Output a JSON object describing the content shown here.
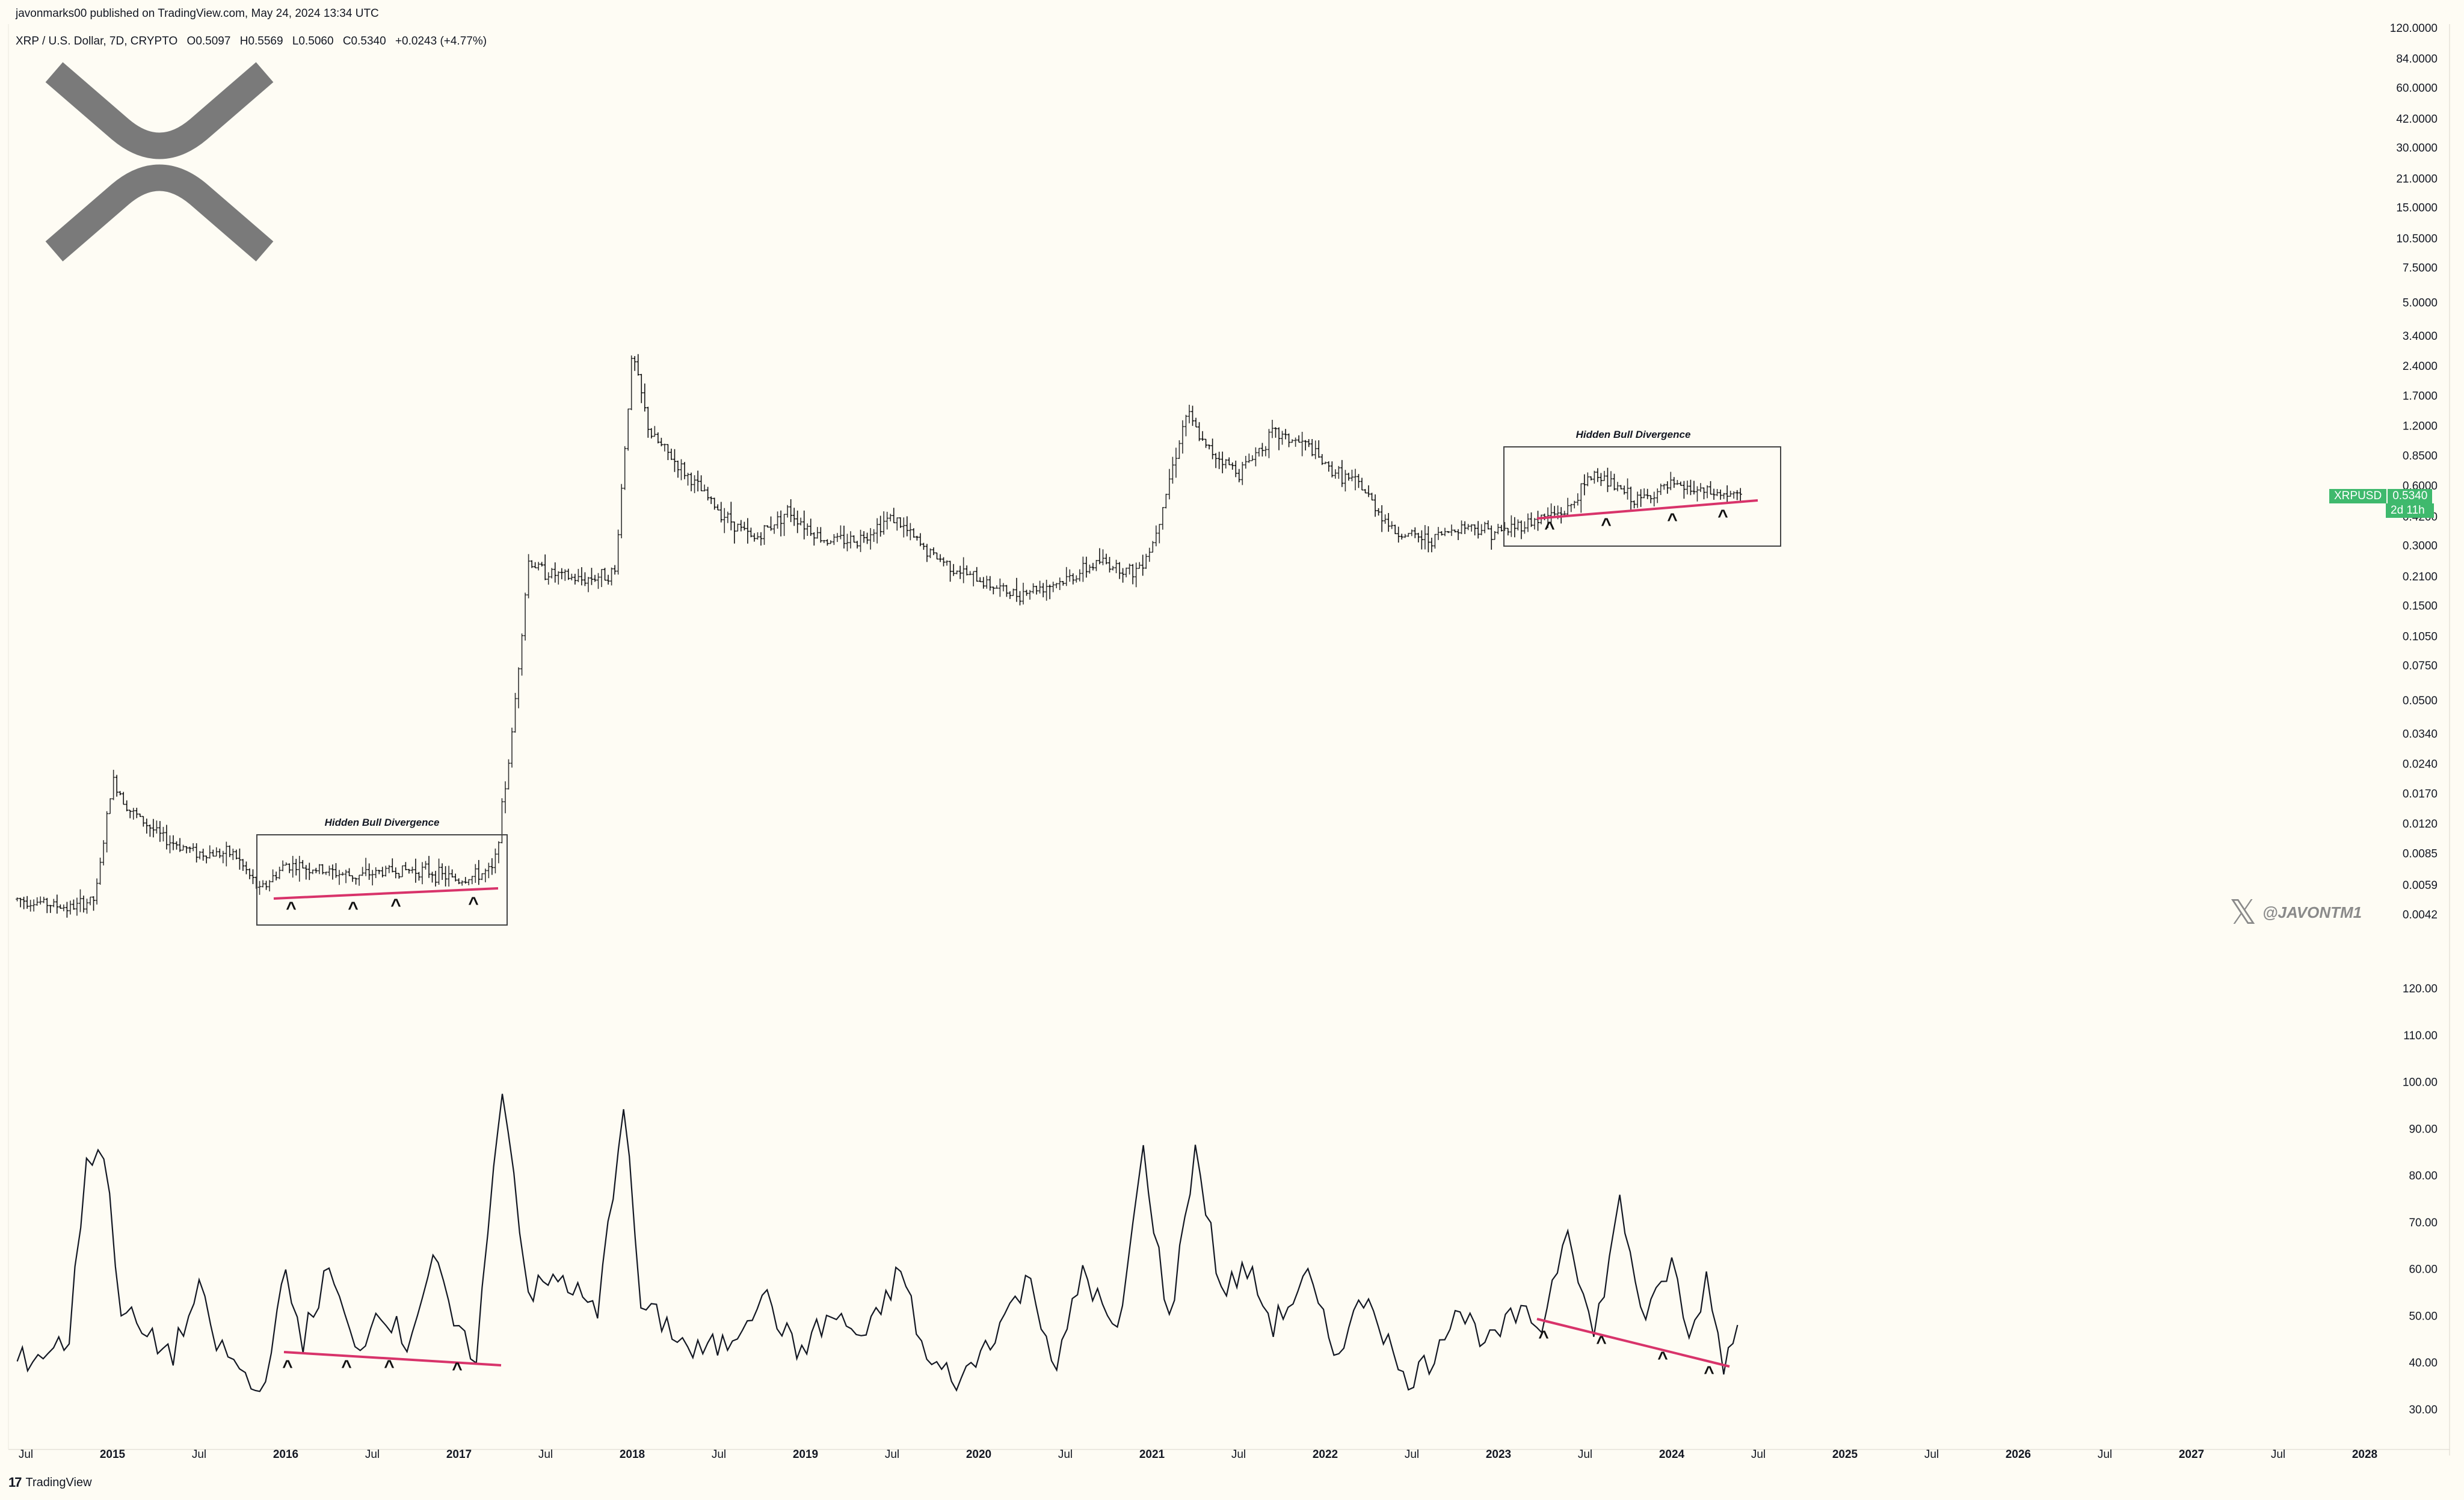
{
  "header": {
    "published": "javonmarks00 published on TradingView.com, May 24, 2024 13:34 UTC"
  },
  "symbol": {
    "name": "XRP / U.S. Dollar, 7D, CRYPTO",
    "open": "O0.5097",
    "high": "H0.5569",
    "low": "L0.5060",
    "close": "C0.5340",
    "change": "+0.0243 (+4.77%)"
  },
  "price_tag": {
    "symbol": "XRPUSD",
    "value": "0.5340",
    "countdown": "2d 11h",
    "color": "#3fb96d"
  },
  "watermark": {
    "handle": "@JAVONTM1",
    "icon": "x-logo-icon"
  },
  "brand": {
    "name": "TradingView",
    "icon": "tradingview-logo-icon"
  },
  "logo": {
    "icon": "xrp-logo-icon",
    "color": "#7a7a7a"
  },
  "annotations": {
    "label_left": "Hidden Bull Divergence",
    "label_right": "Hidden Bull Divergence",
    "line_color": "#d8336a",
    "marker": "^"
  },
  "chart_data": [
    {
      "type": "candlestick",
      "title": "XRP / U.S. Dollar, 7D, CRYPTO",
      "scale": "log",
      "ylim": [
        0.0042,
        120
      ],
      "y_tick_labels": [
        "120.0000",
        "84.0000",
        "60.0000",
        "42.0000",
        "30.0000",
        "21.0000",
        "15.0000",
        "10.5000",
        "7.5000",
        "5.0000",
        "3.4000",
        "2.4000",
        "1.7000",
        "1.2000",
        "0.8500",
        "0.6000",
        "0.4200",
        "0.3000",
        "0.2100",
        "0.1500",
        "0.1050",
        "0.0750",
        "0.0500",
        "0.0340",
        "0.0240",
        "0.0170",
        "0.0120",
        "0.0085",
        "0.0059",
        "0.0042"
      ],
      "x_tick_labels": [
        "Jul",
        "2015",
        "Jul",
        "2016",
        "Jul",
        "2017",
        "Jul",
        "2018",
        "Jul",
        "2019",
        "Jul",
        "2020",
        "Jul",
        "2021",
        "Jul",
        "2022",
        "Jul",
        "2023",
        "Jul",
        "2024",
        "Jul",
        "2025",
        "Jul",
        "2026",
        "Jul",
        "2027",
        "Jul",
        "2028"
      ],
      "x": [
        2014.45,
        2014.6,
        2014.75,
        2014.9,
        2015.0,
        2015.1,
        2015.3,
        2015.5,
        2015.7,
        2015.85,
        2016.0,
        2016.2,
        2016.4,
        2016.6,
        2016.8,
        2017.0,
        2017.2,
        2017.3,
        2017.4,
        2017.5,
        2017.7,
        2017.9,
        2018.0,
        2018.1,
        2018.3,
        2018.5,
        2018.7,
        2018.9,
        2019.1,
        2019.3,
        2019.5,
        2019.7,
        2019.9,
        2020.2,
        2020.3,
        2020.5,
        2020.7,
        2020.9,
        2021.0,
        2021.2,
        2021.3,
        2021.5,
        2021.7,
        2021.9,
        2022.0,
        2022.2,
        2022.4,
        2022.6,
        2022.8,
        2023.0,
        2023.2,
        2023.4,
        2023.55,
        2023.8,
        2024.0,
        2024.2,
        2024.4
      ],
      "y": [
        0.005,
        0.0048,
        0.0045,
        0.005,
        0.02,
        0.014,
        0.01,
        0.0085,
        0.0085,
        0.0055,
        0.0075,
        0.007,
        0.0065,
        0.007,
        0.007,
        0.0062,
        0.007,
        0.03,
        0.25,
        0.22,
        0.2,
        0.22,
        2.8,
        1.1,
        0.7,
        0.45,
        0.32,
        0.45,
        0.32,
        0.32,
        0.42,
        0.28,
        0.22,
        0.17,
        0.18,
        0.2,
        0.25,
        0.22,
        0.3,
        1.4,
        0.95,
        0.7,
        1.1,
        0.95,
        0.75,
        0.6,
        0.35,
        0.32,
        0.38,
        0.35,
        0.4,
        0.45,
        0.7,
        0.5,
        0.6,
        0.55,
        0.53
      ],
      "series": [
        {
          "name": "XRPUSD"
        }
      ]
    },
    {
      "type": "line",
      "title": "",
      "ylim": [
        30,
        120
      ],
      "y_tick_labels": [
        "120.00",
        "110.00",
        "100.00",
        "90.00",
        "80.00",
        "70.00",
        "60.00",
        "50.00",
        "40.00",
        "30.00"
      ],
      "x": [
        2014.45,
        2014.6,
        2014.75,
        2014.85,
        2014.95,
        2015.05,
        2015.2,
        2015.35,
        2015.5,
        2015.6,
        2015.7,
        2015.8,
        2015.85,
        2015.95,
        2016.0,
        2016.1,
        2016.25,
        2016.4,
        2016.55,
        2016.7,
        2016.85,
        2017.0,
        2017.1,
        2017.2,
        2017.25,
        2017.35,
        2017.4,
        2017.6,
        2017.8,
        2017.95,
        2018.05,
        2018.2,
        2018.35,
        2018.55,
        2018.75,
        2018.95,
        2019.15,
        2019.35,
        2019.55,
        2019.7,
        2019.9,
        2020.15,
        2020.3,
        2020.45,
        2020.6,
        2020.8,
        2020.95,
        2021.1,
        2021.25,
        2021.4,
        2021.55,
        2021.7,
        2021.9,
        2022.05,
        2022.25,
        2022.45,
        2022.6,
        2022.75,
        2022.95,
        2023.1,
        2023.25,
        2023.4,
        2023.55,
        2023.7,
        2023.85,
        2024.0,
        2024.1,
        2024.2,
        2024.3,
        2024.38
      ],
      "values": [
        40,
        42,
        45,
        84,
        85,
        52,
        45,
        42,
        55,
        44,
        40,
        35,
        33,
        50,
        58,
        45,
        60,
        42,
        52,
        44,
        62,
        45,
        42,
        80,
        100,
        70,
        55,
        58,
        50,
        96,
        52,
        48,
        42,
        44,
        55,
        42,
        50,
        45,
        60,
        40,
        36,
        50,
        58,
        38,
        60,
        45,
        85,
        48,
        86,
        55,
        60,
        48,
        58,
        42,
        55,
        36,
        40,
        52,
        44,
        50,
        48,
        70,
        45,
        74,
        48,
        62,
        44,
        58,
        40,
        48
      ]
    }
  ]
}
